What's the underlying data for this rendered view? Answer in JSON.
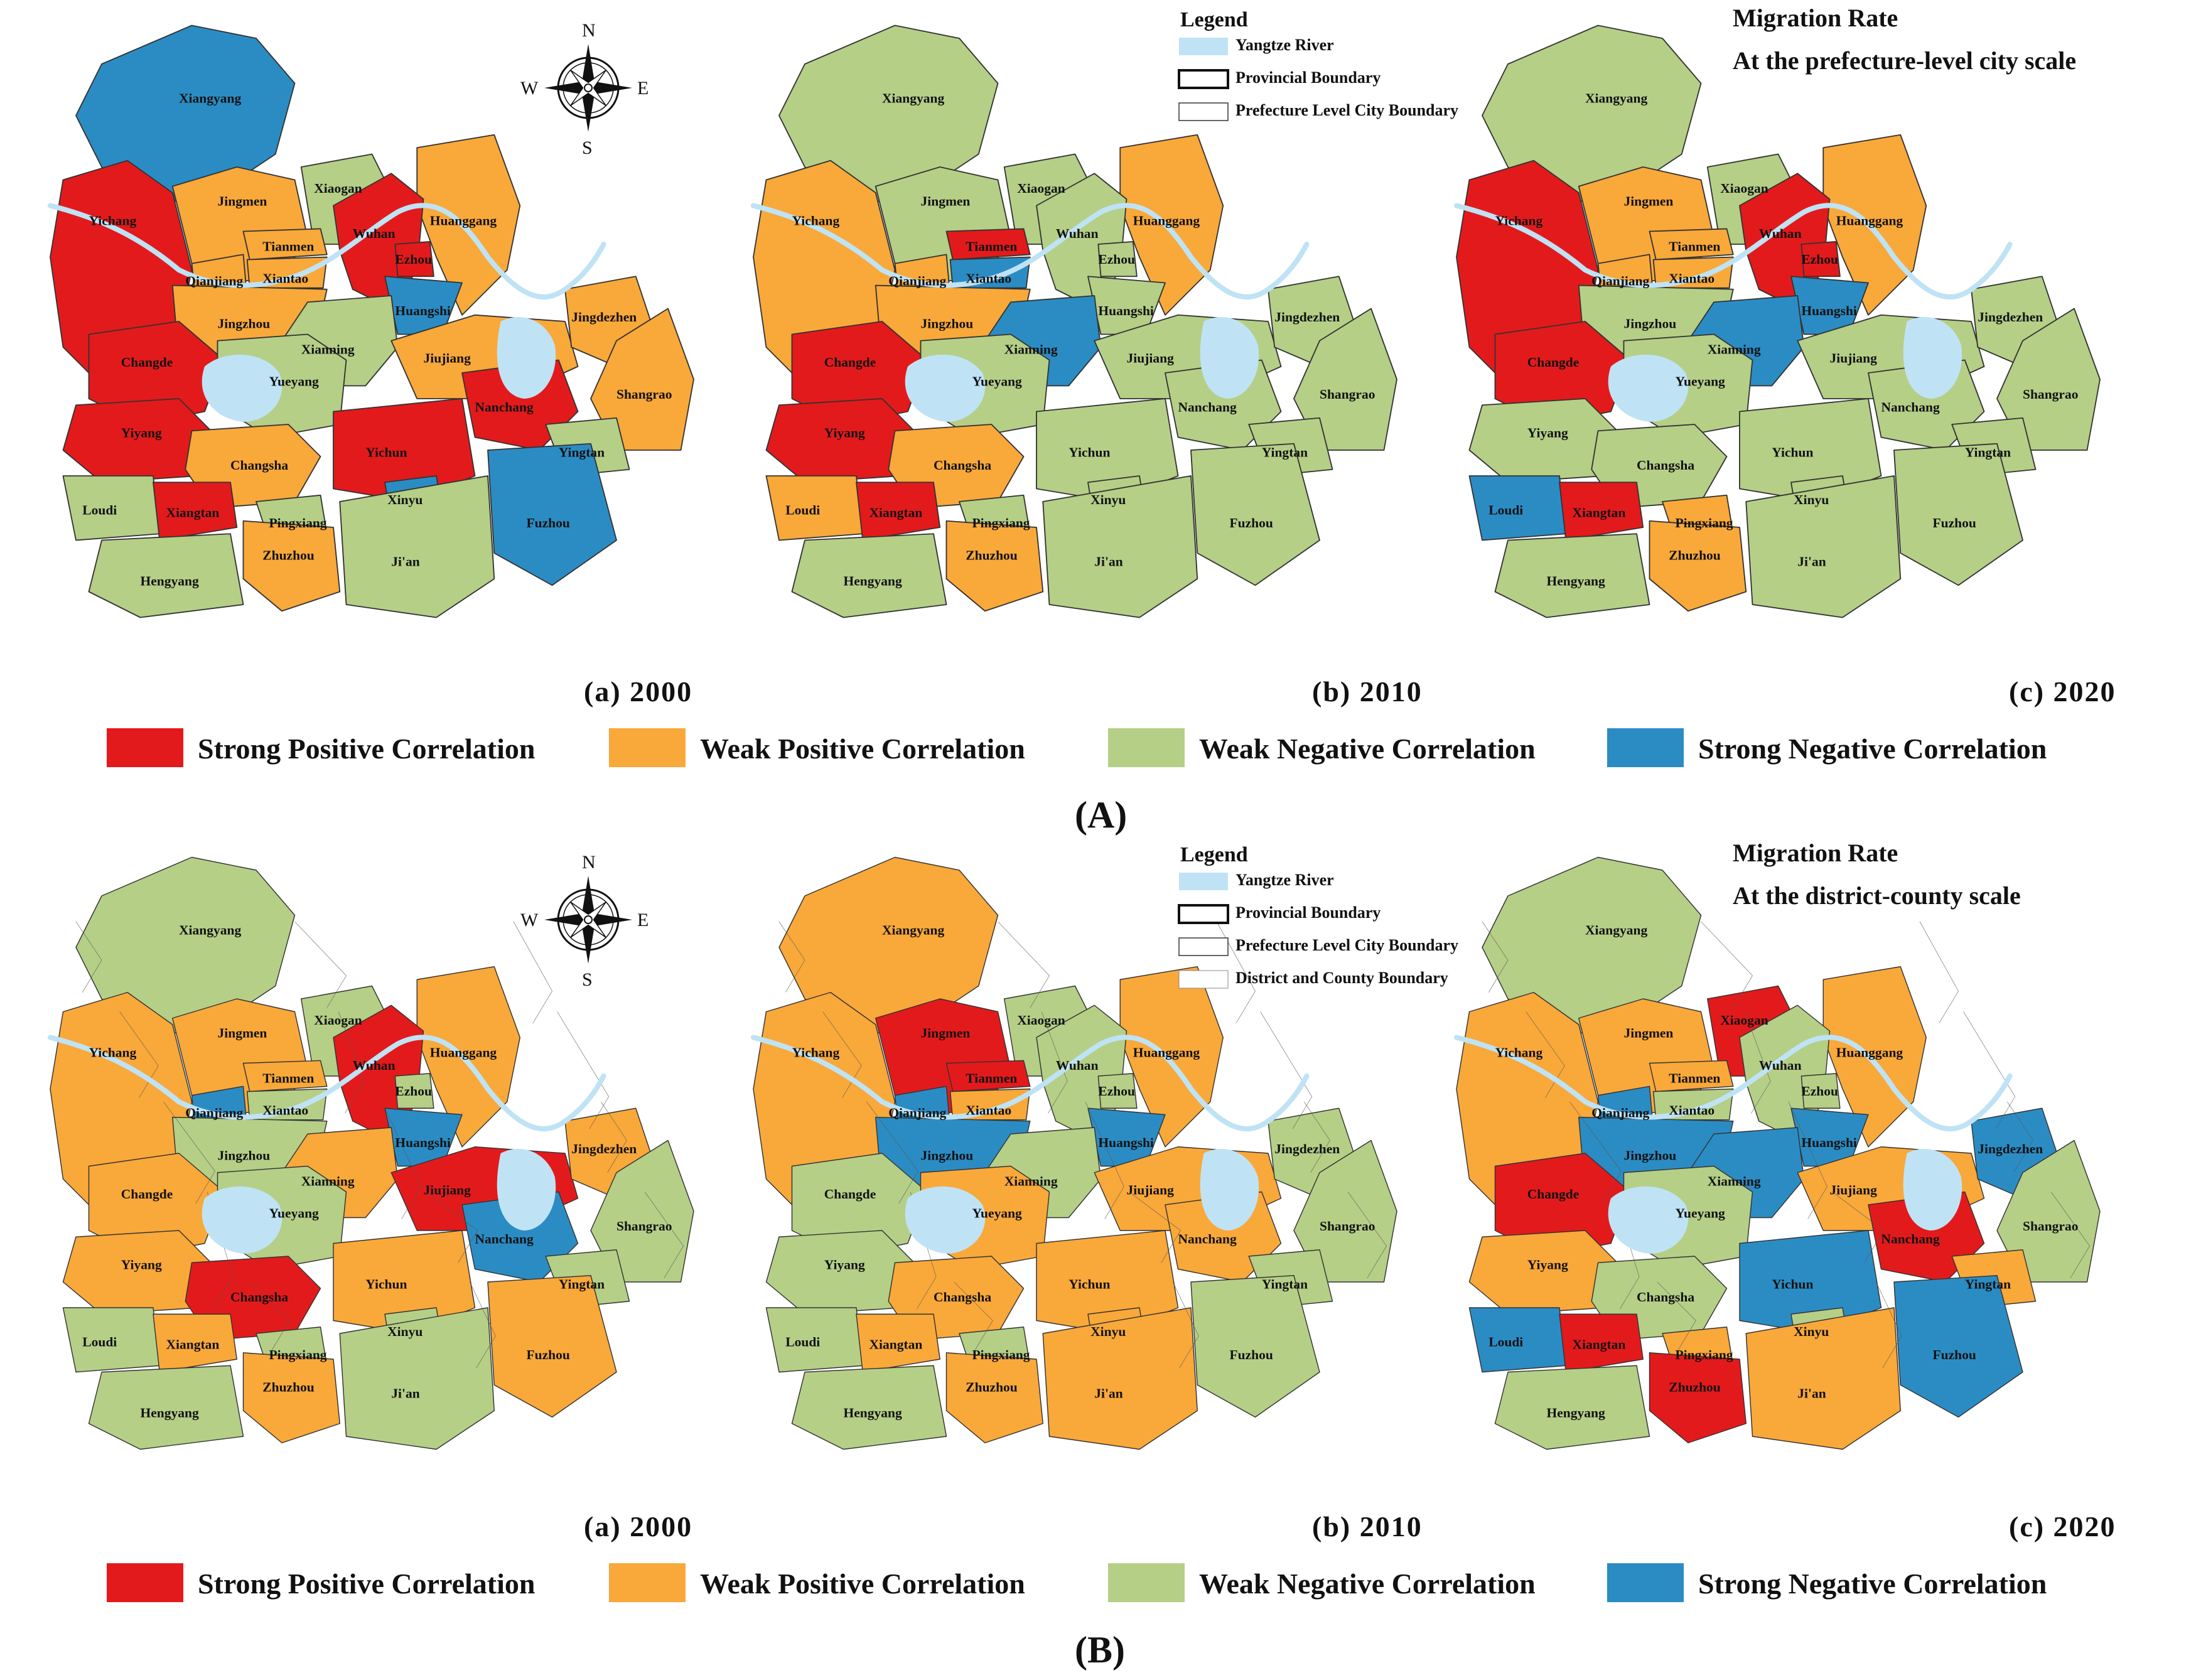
{
  "colors": {
    "strong_positive": "#e31a1c",
    "weak_positive": "#f9a83a",
    "weak_negative": "#b5cf87",
    "strong_negative": "#2b8cc4",
    "river": "#bfe3f5"
  },
  "compass": {
    "n": "N",
    "s": "S",
    "e": "E",
    "w": "W"
  },
  "correlation_legend": [
    {
      "key": "strong_positive",
      "label": "Strong Positive Correlation"
    },
    {
      "key": "weak_positive",
      "label": "Weak Positive Correlation"
    },
    {
      "key": "weak_negative",
      "label": "Weak Negative Correlation"
    },
    {
      "key": "strong_negative",
      "label": "Strong Negative Correlation"
    }
  ],
  "panel_labels": [
    "(a)  2000",
    "(b)  2010",
    "(c)  2020"
  ],
  "sections": [
    {
      "label": "(A)",
      "legend_title": "Legend",
      "legend_items": [
        "Yangtze River",
        "Provincial Boundary",
        "Prefecture Level City Boundary"
      ],
      "rate_title": "Migration Rate",
      "rate_subtitle": "At the prefecture-level city scale"
    },
    {
      "label": "(B)",
      "legend_title": "Legend",
      "legend_items": [
        "Yangtze River",
        "Provincial Boundary",
        "Prefecture Level City Boundary",
        "District and County Boundary"
      ],
      "rate_title": "Migration Rate",
      "rate_subtitle": "At the district-county scale"
    }
  ],
  "cities": [
    "Xiangyang",
    "Yichang",
    "Jingmen",
    "Xiaogan",
    "Huanggang",
    "Tianmen",
    "Wuhan",
    "Qianjiang",
    "Xiantao",
    "Ezhou",
    "Jingzhou",
    "Huangshi",
    "Xianning",
    "Changde",
    "Yueyang",
    "Jiujiang",
    "Jingdezhen",
    "Shangrao",
    "Yiyang",
    "Changsha",
    "Nanchang",
    "Yichun",
    "Yingtan",
    "Loudi",
    "Xiangtan",
    "Xinyu",
    "Pingxiang",
    "Zhuzhou",
    "Fuzhou",
    "Hengyang",
    "Ji'an"
  ],
  "city_scale_classes": {
    "2000": {
      "Xiangyang": "strong_negative",
      "Yichang": "strong_positive",
      "Jingmen": "weak_positive",
      "Xiaogan": "weak_negative",
      "Huanggang": "weak_positive",
      "Tianmen": "weak_positive",
      "Wuhan": "strong_positive",
      "Qianjiang": "weak_positive",
      "Xiantao": "weak_positive",
      "Ezhou": "strong_positive",
      "Jingzhou": "weak_positive",
      "Huangshi": "strong_negative",
      "Xianning": "weak_negative",
      "Changde": "strong_positive",
      "Yueyang": "weak_negative",
      "Jiujiang": "weak_positive",
      "Jingdezhen": "weak_positive",
      "Shangrao": "weak_positive",
      "Yiyang": "strong_positive",
      "Changsha": "weak_positive",
      "Nanchang": "strong_positive",
      "Yichun": "strong_positive",
      "Yingtan": "weak_negative",
      "Loudi": "weak_negative",
      "Xiangtan": "strong_positive",
      "Xinyu": "strong_negative",
      "Pingxiang": "weak_negative",
      "Zhuzhou": "weak_positive",
      "Fuzhou": "strong_negative",
      "Hengyang": "weak_negative",
      "Ji'an": "weak_negative"
    },
    "2010": {
      "Xiangyang": "weak_negative",
      "Yichang": "weak_positive",
      "Jingmen": "weak_negative",
      "Xiaogan": "weak_negative",
      "Huanggang": "weak_positive",
      "Tianmen": "strong_positive",
      "Wuhan": "weak_negative",
      "Qianjiang": "weak_positive",
      "Xiantao": "strong_negative",
      "Ezhou": "weak_negative",
      "Jingzhou": "weak_positive",
      "Huangshi": "weak_negative",
      "Xianning": "strong_negative",
      "Changde": "strong_positive",
      "Yueyang": "weak_negative",
      "Jiujiang": "weak_negative",
      "Jingdezhen": "weak_negative",
      "Shangrao": "weak_negative",
      "Yiyang": "strong_positive",
      "Changsha": "weak_positive",
      "Nanchang": "weak_negative",
      "Yichun": "weak_negative",
      "Yingtan": "weak_negative",
      "Loudi": "weak_positive",
      "Xiangtan": "strong_positive",
      "Xinyu": "weak_negative",
      "Pingxiang": "weak_negative",
      "Zhuzhou": "weak_positive",
      "Fuzhou": "weak_negative",
      "Hengyang": "weak_negative",
      "Ji'an": "weak_negative"
    },
    "2020": {
      "Xiangyang": "weak_negative",
      "Yichang": "strong_positive",
      "Jingmen": "weak_positive",
      "Xiaogan": "weak_negative",
      "Huanggang": "weak_positive",
      "Tianmen": "weak_positive",
      "Wuhan": "strong_positive",
      "Qianjiang": "weak_positive",
      "Xiantao": "weak_positive",
      "Ezhou": "strong_positive",
      "Jingzhou": "weak_negative",
      "Huangshi": "strong_negative",
      "Xianning": "strong_negative",
      "Changde": "strong_positive",
      "Yueyang": "weak_negative",
      "Jiujiang": "weak_negative",
      "Jingdezhen": "weak_negative",
      "Shangrao": "weak_negative",
      "Yiyang": "weak_negative",
      "Changsha": "weak_negative",
      "Nanchang": "weak_negative",
      "Yichun": "weak_negative",
      "Yingtan": "weak_negative",
      "Loudi": "strong_negative",
      "Xiangtan": "strong_positive",
      "Xinyu": "weak_negative",
      "Pingxiang": "weak_positive",
      "Zhuzhou": "weak_positive",
      "Fuzhou": "weak_negative",
      "Hengyang": "weak_negative",
      "Ji'an": "weak_negative"
    }
  },
  "county_scale_classes": {
    "2000": {
      "Xiangyang": "weak_negative",
      "Yichang": "weak_positive",
      "Jingmen": "weak_positive",
      "Xiaogan": "weak_negative",
      "Huanggang": "weak_positive",
      "Tianmen": "weak_positive",
      "Wuhan": "strong_positive",
      "Qianjiang": "strong_negative",
      "Xiantao": "weak_negative",
      "Ezhou": "weak_negative",
      "Jingzhou": "weak_negative",
      "Huangshi": "strong_negative",
      "Xianning": "weak_positive",
      "Changde": "weak_positive",
      "Yueyang": "weak_negative",
      "Jiujiang": "strong_positive",
      "Jingdezhen": "weak_positive",
      "Shangrao": "weak_negative",
      "Yiyang": "weak_positive",
      "Changsha": "strong_positive",
      "Nanchang": "strong_negative",
      "Yichun": "weak_positive",
      "Yingtan": "weak_negative",
      "Loudi": "weak_negative",
      "Xiangtan": "weak_positive",
      "Xinyu": "weak_negative",
      "Pingxiang": "weak_negative",
      "Zhuzhou": "weak_positive",
      "Fuzhou": "weak_positive",
      "Hengyang": "weak_negative",
      "Ji'an": "weak_negative"
    },
    "2010": {
      "Xiangyang": "weak_positive",
      "Yichang": "weak_positive",
      "Jingmen": "strong_positive",
      "Xiaogan": "weak_negative",
      "Huanggang": "weak_positive",
      "Tianmen": "strong_positive",
      "Wuhan": "weak_negative",
      "Qianjiang": "strong_negative",
      "Xiantao": "weak_positive",
      "Ezhou": "weak_negative",
      "Jingzhou": "strong_negative",
      "Huangshi": "strong_negative",
      "Xianning": "weak_negative",
      "Changde": "weak_negative",
      "Yueyang": "weak_positive",
      "Jiujiang": "weak_positive",
      "Jingdezhen": "weak_negative",
      "Shangrao": "weak_negative",
      "Yiyang": "weak_negative",
      "Changsha": "weak_positive",
      "Nanchang": "weak_positive",
      "Yichun": "weak_positive",
      "Yingtan": "weak_negative",
      "Loudi": "weak_negative",
      "Xiangtan": "weak_positive",
      "Xinyu": "weak_positive",
      "Pingxiang": "weak_negative",
      "Zhuzhou": "weak_positive",
      "Fuzhou": "weak_negative",
      "Hengyang": "weak_negative",
      "Ji'an": "weak_positive"
    },
    "2020": {
      "Xiangyang": "weak_negative",
      "Yichang": "weak_positive",
      "Jingmen": "weak_positive",
      "Xiaogan": "strong_positive",
      "Huanggang": "weak_positive",
      "Tianmen": "weak_positive",
      "Wuhan": "weak_negative",
      "Qianjiang": "strong_negative",
      "Xiantao": "weak_negative",
      "Ezhou": "weak_negative",
      "Jingzhou": "strong_negative",
      "Huangshi": "strong_negative",
      "Xianning": "strong_negative",
      "Changde": "strong_positive",
      "Yueyang": "weak_negative",
      "Jiujiang": "weak_positive",
      "Jingdezhen": "strong_negative",
      "Shangrao": "weak_negative",
      "Yiyang": "weak_positive",
      "Changsha": "weak_negative",
      "Nanchang": "strong_positive",
      "Yichun": "strong_negative",
      "Yingtan": "weak_positive",
      "Loudi": "strong_negative",
      "Xiangtan": "strong_positive",
      "Xinyu": "weak_negative",
      "Pingxiang": "weak_positive",
      "Zhuzhou": "strong_positive",
      "Fuzhou": "strong_negative",
      "Hengyang": "weak_negative",
      "Ji'an": "weak_positive"
    }
  }
}
